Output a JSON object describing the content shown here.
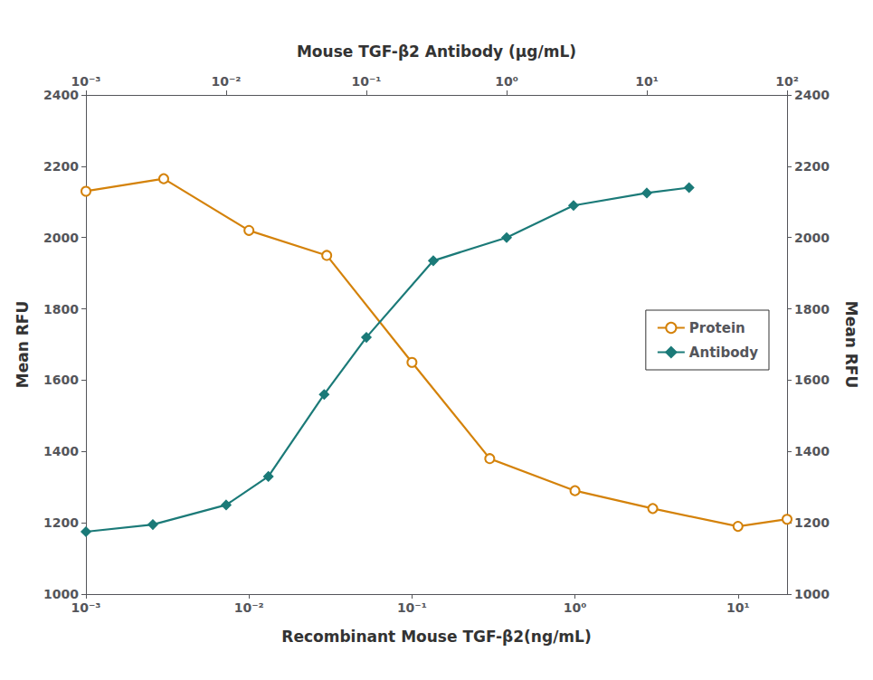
{
  "chart_data": {
    "type": "line",
    "log": "x",
    "xlabel": "Recombinant Mouse TGF-β2(ng/mL)",
    "x2label": "Mouse TGF-β2 Antibody (μg/mL)",
    "ylabel": "Mean RFU",
    "y2label": "Mean RFU",
    "xlim": [
      0.001,
      20.0
    ],
    "xticks": [
      {
        "value": 0.001,
        "label": "10⁻³"
      },
      {
        "value": 0.01,
        "label": "10⁻²"
      },
      {
        "value": 0.1,
        "label": "10⁻¹"
      },
      {
        "value": 1,
        "label": "10⁰"
      },
      {
        "value": 10,
        "label": "10¹"
      }
    ],
    "x2lim": [
      0.001,
      100.0
    ],
    "x2ticks": [
      {
        "value": 0.001,
        "label": "10⁻³"
      },
      {
        "value": 0.01,
        "label": "10⁻²"
      },
      {
        "value": 0.1,
        "label": "10⁻¹"
      },
      {
        "value": 1,
        "label": "10⁰"
      },
      {
        "value": 10,
        "label": "10¹"
      },
      {
        "value": 100,
        "label": "10²"
      }
    ],
    "ylim": [
      1000,
      2400
    ],
    "yticks": [
      1000,
      1200,
      1400,
      1600,
      1800,
      2000,
      2200,
      2400
    ],
    "y2lim": [
      1000,
      2400
    ],
    "y2ticks": [
      1000,
      1200,
      1400,
      1600,
      1800,
      2000,
      2200,
      2400
    ],
    "grid": false,
    "legend": "right",
    "series": [
      {
        "name": "Protein",
        "color": "#D4820A",
        "marker": "circle_open",
        "line_style": "solid",
        "x": [
          0.001,
          0.003,
          0.01,
          0.03,
          0.1,
          0.3,
          1.0,
          3.0,
          10.0,
          20.0
        ],
        "values": [
          2130,
          2165,
          2020,
          1950,
          1650,
          1380,
          1290,
          1240,
          1190,
          1210
        ]
      },
      {
        "name": "Antibody",
        "color": "#1B7A78",
        "marker": "diamond",
        "line_style": "solid",
        "axis": "x2",
        "x": [
          0.001,
          0.003,
          0.01,
          0.02,
          0.05,
          0.1,
          0.3,
          1.0,
          3.0,
          10.0,
          20.0
        ],
        "values": [
          1175,
          1195,
          1250,
          1330,
          1560,
          1720,
          1935,
          2000,
          2090,
          2125,
          2140
        ]
      }
    ]
  }
}
